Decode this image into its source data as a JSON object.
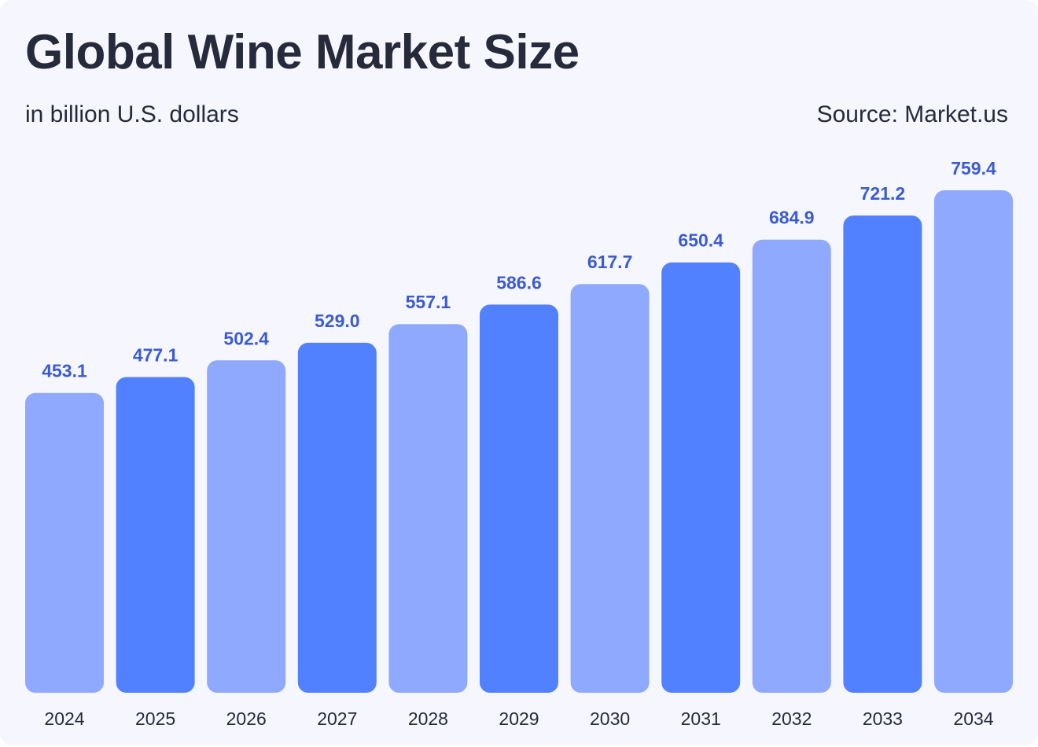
{
  "header": {
    "title": "Global Wine Market Size",
    "subtitle": "in billion U.S. dollars",
    "source": "Source: Market.us"
  },
  "colors": {
    "bar_light": "#8fa9ff",
    "bar_dark": "#5281ff",
    "value_label": "#3b5bd1",
    "category_label": "#262a3a",
    "background": "#f5f6fe",
    "text": "#262a3a"
  },
  "chart_data": {
    "type": "bar",
    "title": "Global Wine Market Size",
    "subtitle": "in billion U.S. dollars",
    "xlabel": "",
    "ylabel": "",
    "categories": [
      "2024",
      "2025",
      "2026",
      "2027",
      "2028",
      "2029",
      "2030",
      "2031",
      "2032",
      "2033",
      "2034"
    ],
    "values": [
      453.1,
      477.1,
      502.4,
      529.0,
      557.1,
      586.6,
      617.7,
      650.4,
      684.9,
      721.2,
      759.4
    ],
    "value_labels": [
      "453.1",
      "477.1",
      "502.4",
      "529.0",
      "557.1",
      "586.6",
      "617.7",
      "650.4",
      "684.9",
      "721.2",
      "759.4"
    ],
    "ylim": [
      0,
      759.4
    ],
    "grid": false,
    "legend": "none",
    "bar_color_pattern": [
      "light",
      "dark",
      "light",
      "dark",
      "light",
      "dark",
      "light",
      "dark",
      "light",
      "dark",
      "light"
    ]
  }
}
